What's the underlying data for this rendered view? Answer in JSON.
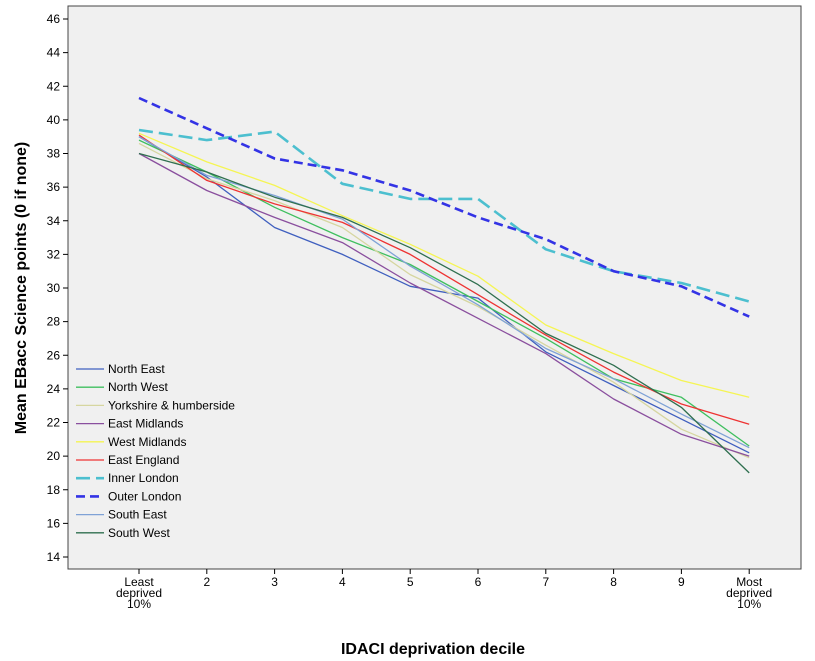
{
  "chart_data": {
    "type": "line",
    "title": "",
    "xlabel": "IDACI deprivation decile",
    "ylabel": "Mean EBacc Science points (0 if none)",
    "ylim": [
      14,
      46
    ],
    "yticks": [
      14,
      16,
      18,
      20,
      22,
      24,
      26,
      28,
      30,
      32,
      34,
      36,
      38,
      40,
      42,
      44,
      46
    ],
    "grid": false,
    "legend_position": "bottom-left",
    "categories": [
      [
        "Least",
        "deprived",
        "10%"
      ],
      [
        "2"
      ],
      [
        "3"
      ],
      [
        "4"
      ],
      [
        "5"
      ],
      [
        "6"
      ],
      [
        "7"
      ],
      [
        "8"
      ],
      [
        "9"
      ],
      [
        "Most",
        "deprived",
        "10%"
      ]
    ],
    "series": [
      {
        "name": "North East",
        "color": "#3f5fbf",
        "dash": "solid",
        "width": 1.3,
        "values": [
          39.0,
          36.6,
          33.6,
          32.0,
          30.1,
          29.4,
          26.2,
          24.2,
          22.2,
          20.2
        ]
      },
      {
        "name": "North West",
        "color": "#3fbf5f",
        "dash": "solid",
        "width": 1.3,
        "values": [
          38.8,
          36.9,
          34.8,
          33.0,
          31.4,
          29.2,
          27.0,
          24.6,
          23.5,
          20.6
        ]
      },
      {
        "name": "Yorkshire & humberside",
        "color": "#d6d6a0",
        "dash": "solid",
        "width": 1.3,
        "values": [
          38.6,
          36.5,
          35.2,
          33.6,
          30.8,
          28.9,
          26.6,
          24.4,
          21.6,
          19.9
        ]
      },
      {
        "name": "East Midlands",
        "color": "#8a4f9e",
        "dash": "solid",
        "width": 1.3,
        "values": [
          38.0,
          35.8,
          34.2,
          32.7,
          30.3,
          28.2,
          26.1,
          23.4,
          21.3,
          20.0
        ]
      },
      {
        "name": "West Midlands",
        "color": "#f5f553",
        "dash": "solid",
        "width": 1.3,
        "values": [
          39.2,
          37.5,
          36.1,
          34.3,
          32.6,
          30.7,
          27.8,
          26.1,
          24.5,
          23.5
        ]
      },
      {
        "name": "East England",
        "color": "#ee3333",
        "dash": "solid",
        "width": 1.3,
        "values": [
          39.1,
          36.4,
          35.0,
          33.9,
          32.0,
          29.6,
          27.2,
          25.0,
          23.1,
          21.9
        ]
      },
      {
        "name": "Inner London",
        "color": "#4cbfcf",
        "dash": "long-dash",
        "width": 2.6,
        "values": [
          39.4,
          38.8,
          39.3,
          36.2,
          35.3,
          35.3,
          32.3,
          31.0,
          30.3,
          29.2
        ]
      },
      {
        "name": "Outer London",
        "color": "#3333e5",
        "dash": "dash",
        "width": 2.6,
        "values": [
          41.3,
          39.5,
          37.7,
          37.0,
          35.8,
          34.2,
          32.9,
          31.0,
          30.1,
          28.3
        ]
      },
      {
        "name": "South East",
        "color": "#7fa2d6",
        "dash": "solid",
        "width": 1.3,
        "values": [
          39.0,
          36.7,
          35.5,
          34.1,
          31.3,
          29.0,
          26.4,
          24.6,
          22.5,
          20.5
        ]
      },
      {
        "name": "South West",
        "color": "#2f6f4f",
        "dash": "solid",
        "width": 1.3,
        "values": [
          38.0,
          36.9,
          35.4,
          34.2,
          32.4,
          30.2,
          27.3,
          25.4,
          22.9,
          19.0
        ]
      }
    ]
  }
}
